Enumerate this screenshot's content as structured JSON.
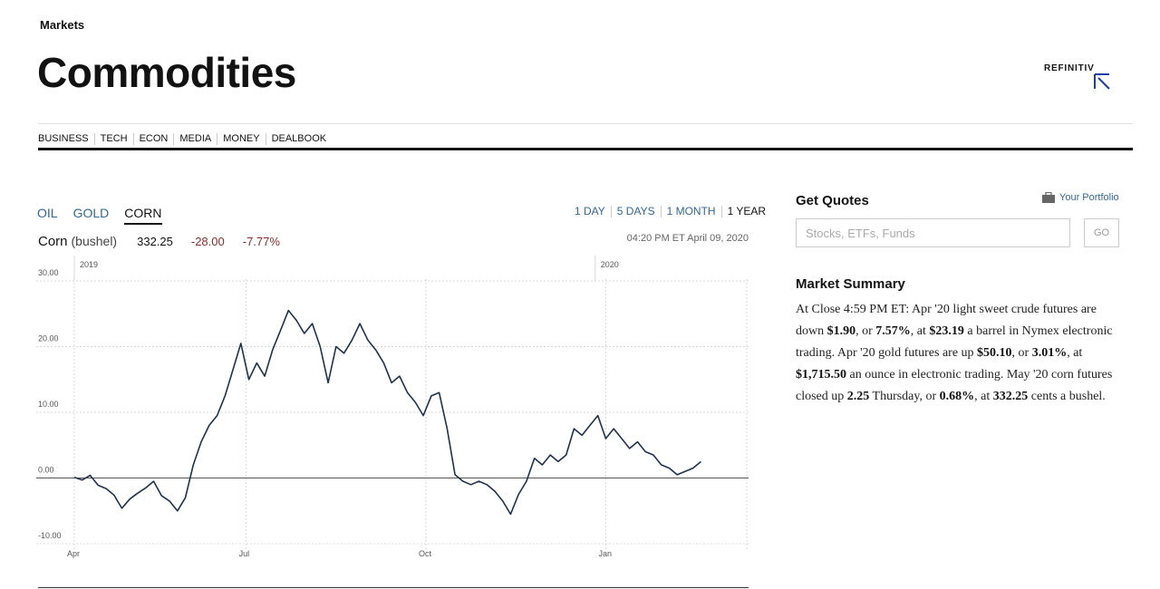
{
  "header": {
    "section": "Markets",
    "title": "Commodities",
    "brand": "REFINITIV"
  },
  "nav": [
    "BUSINESS",
    "TECH",
    "ECON",
    "MEDIA",
    "MONEY",
    "DEALBOOK"
  ],
  "commodity_tabs": {
    "items": [
      "OIL",
      "GOLD",
      "CORN"
    ],
    "active": "CORN"
  },
  "range_tabs": {
    "items": [
      "1 DAY",
      "5 DAYS",
      "1 MONTH",
      "1 YEAR"
    ],
    "active": "1 YEAR"
  },
  "quote": {
    "name": "Corn",
    "unit": "(bushel)",
    "price": "332.25",
    "change": "-28.00",
    "percent": "-7.77%",
    "timestamp": "04:20 PM ET April 09, 2020"
  },
  "colors": {
    "line": "#1f3249",
    "link": "#326891",
    "negative": "#8a2d2d"
  },
  "get_quotes": {
    "title": "Get Quotes",
    "portfolio_label": "Your Portfolio",
    "portfolio_icon": "briefcase-icon",
    "search_placeholder": "Stocks, ETFs, Funds",
    "go_label": "GO"
  },
  "market_summary": {
    "title": "Market Summary",
    "parts": [
      "At Close 4:59 PM ET:  Apr '20 light sweet crude futures are down ",
      "$1.90",
      ", or ",
      "7.57%",
      ", at ",
      "$23.19",
      " a barrel in Nymex electronic trading. Apr '20 gold futures are up ",
      "$50.10",
      ", or ",
      "3.01%",
      ", at ",
      "$1,715.50",
      " an ounce in electronic trading. May '20 corn futures closed up ",
      "2.25",
      " Thursday, or ",
      "0.68%",
      ", at ",
      "332.25",
      " cents a bushel."
    ]
  },
  "chart_data": {
    "type": "line",
    "y_ticks": [
      "30.00",
      "20.00",
      "10.00",
      "0.00",
      "-10.00"
    ],
    "ylim": [
      -10,
      30
    ],
    "x_ticks": [
      "Apr",
      "Jul",
      "Oct",
      "Jan"
    ],
    "year_labels": [
      "2019",
      "2020"
    ],
    "grid": true,
    "xlim": [
      0,
      255
    ],
    "series": [
      {
        "values": [
          [
            0,
            0.1
          ],
          [
            3,
            -0.3
          ],
          [
            6,
            0.4
          ],
          [
            9,
            -1.1
          ],
          [
            12,
            -1.6
          ],
          [
            15,
            -2.6
          ],
          [
            18,
            -4.6
          ],
          [
            21,
            -3.2
          ],
          [
            24,
            -2.3
          ],
          [
            27,
            -1.5
          ],
          [
            30,
            -0.5
          ],
          [
            33,
            -2.7
          ],
          [
            36,
            -3.5
          ],
          [
            39,
            -5.0
          ],
          [
            42,
            -3.0
          ],
          [
            45,
            2.0
          ],
          [
            48,
            5.5
          ],
          [
            51,
            8.0
          ],
          [
            54,
            9.5
          ],
          [
            57,
            12.5
          ],
          [
            60,
            16.5
          ],
          [
            63,
            20.5
          ],
          [
            66,
            15.0
          ],
          [
            69,
            17.5
          ],
          [
            72,
            15.5
          ],
          [
            75,
            19.5
          ],
          [
            78,
            22.5
          ],
          [
            81,
            25.5
          ],
          [
            84,
            24.0
          ],
          [
            87,
            22.0
          ],
          [
            90,
            23.5
          ],
          [
            93,
            20.0
          ],
          [
            96,
            14.5
          ],
          [
            99,
            20.0
          ],
          [
            102,
            19.0
          ],
          [
            105,
            21.0
          ],
          [
            108,
            23.5
          ],
          [
            111,
            21.0
          ],
          [
            114,
            19.5
          ],
          [
            117,
            17.5
          ],
          [
            120,
            14.5
          ],
          [
            123,
            15.5
          ],
          [
            126,
            13.0
          ],
          [
            129,
            11.5
          ],
          [
            132,
            9.5
          ],
          [
            135,
            12.5
          ],
          [
            138,
            13.0
          ],
          [
            141,
            7.5
          ],
          [
            144,
            0.5
          ],
          [
            147,
            -0.5
          ],
          [
            150,
            -1.0
          ],
          [
            153,
            -0.5
          ],
          [
            156,
            -1.0
          ],
          [
            159,
            -2.0
          ],
          [
            162,
            -3.5
          ],
          [
            165,
            -5.5
          ],
          [
            168,
            -2.5
          ],
          [
            171,
            -0.5
          ],
          [
            174,
            3.0
          ],
          [
            177,
            2.0
          ],
          [
            180,
            3.5
          ],
          [
            183,
            2.5
          ],
          [
            186,
            3.5
          ],
          [
            189,
            7.5
          ],
          [
            192,
            6.5
          ],
          [
            195,
            8.0
          ],
          [
            198,
            9.5
          ],
          [
            201,
            6.0
          ],
          [
            204,
            7.5
          ],
          [
            207,
            6.0
          ],
          [
            210,
            4.5
          ],
          [
            213,
            5.5
          ],
          [
            216,
            4.0
          ],
          [
            219,
            3.5
          ],
          [
            222,
            2.0
          ],
          [
            225,
            1.5
          ],
          [
            228,
            0.5
          ],
          [
            231,
            1.0
          ],
          [
            234,
            1.5
          ],
          [
            237,
            2.5
          ]
        ]
      }
    ]
  }
}
